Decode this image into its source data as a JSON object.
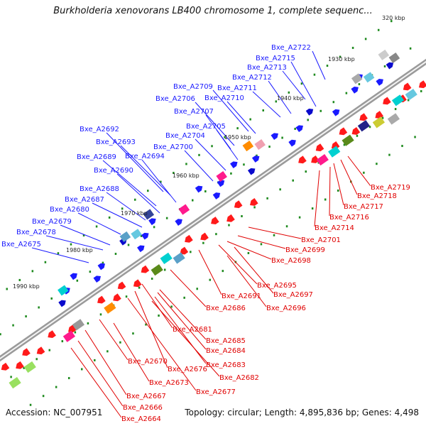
{
  "title": "Burkholderia xenovorans LB400 chromosome 1, complete sequenc...",
  "accession": "Accession: NC_007951",
  "summary": "Topology: circular; Length: 4,895,836 bp; Genes: 4,498",
  "ticks": [
    "320 kbp",
    "1930 kbp",
    "1940 kbp",
    "1950 kbp",
    "1960 kbp",
    "1970 kbp",
    "1980 kbp",
    "1990 kbp"
  ],
  "genes_forward": [
    "Bxe_A2722",
    "Bxe_A2715",
    "Bxe_A2713",
    "Bxe_A2712",
    "Bxe_A2711",
    "Bxe_A2709",
    "Bxe_A2710",
    "Bxe_A2706",
    "Bxe_A2707",
    "Bxe_A2705",
    "Bxe_A2704",
    "Bxe_A2700",
    "Bxe_A2692",
    "Bxe_A2693",
    "Bxe_A2694",
    "Bxe_A2689",
    "Bxe_A2690",
    "Bxe_A2688",
    "Bxe_A2687",
    "Bxe_A2680",
    "Bxe_A2679",
    "Bxe_A2678",
    "Bxe_A2675"
  ],
  "genes_reverse": [
    "Bxe_A2719",
    "Bxe_A2718",
    "Bxe_A2717",
    "Bxe_A2716",
    "Bxe_A2714",
    "Bxe_A2701",
    "Bxe_A2699",
    "Bxe_A2698",
    "Bxe_A2695",
    "Bxe_A2697",
    "Bxe_A2691",
    "Bxe_A2696",
    "Bxe_A2686",
    "Bxe_A2681",
    "Bxe_A2685",
    "Bxe_A2684",
    "Bxe_A2683",
    "Bxe_A2682",
    "Bxe_A2670",
    "Bxe_A2676",
    "Bxe_A2673",
    "Bxe_A2677",
    "Bxe_A2667",
    "Bxe_A2666",
    "Bxe_A2664"
  ]
}
